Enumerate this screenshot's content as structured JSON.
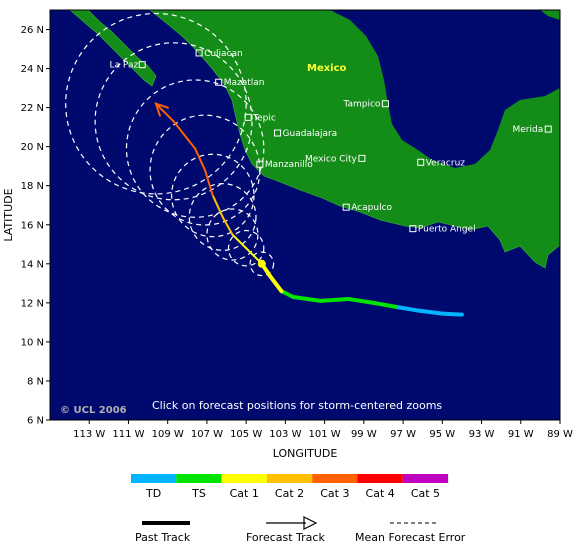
{
  "map": {
    "xlabel": "LONGITUDE",
    "ylabel": "LATITUDE",
    "lat_ticks": [
      "26 N",
      "24 N",
      "22 N",
      "20 N",
      "18 N",
      "16 N",
      "14 N",
      "12 N",
      "10 N",
      "8 N",
      "6 N"
    ],
    "lon_ticks": [
      "113 W",
      "111 W",
      "109 W",
      "107 W",
      "105 W",
      "103 W",
      "101 W",
      "99 W",
      "97 W",
      "95 W",
      "93 W",
      "91 W",
      "89 W"
    ],
    "country": "Mexico",
    "cities": [
      {
        "name": "Culiacan",
        "lon": -107.4,
        "lat": 24.8
      },
      {
        "name": "La Paz",
        "lon": -110.3,
        "lat": 24.2
      },
      {
        "name": "Mazatlan",
        "lon": -106.4,
        "lat": 23.3
      },
      {
        "name": "Tampico",
        "lon": -97.9,
        "lat": 22.2
      },
      {
        "name": "Tepic",
        "lon": -104.9,
        "lat": 21.5
      },
      {
        "name": "Merida",
        "lon": -89.6,
        "lat": 20.9
      },
      {
        "name": "Guadalajara",
        "lon": -103.4,
        "lat": 20.7
      },
      {
        "name": "Mexico City",
        "lon": -99.1,
        "lat": 19.4
      },
      {
        "name": "Veracruz",
        "lon": -96.1,
        "lat": 19.2
      },
      {
        "name": "Manzanillo",
        "lon": -104.3,
        "lat": 19.1
      },
      {
        "name": "Acapulco",
        "lon": -99.9,
        "lat": 16.9
      },
      {
        "name": "Puerto Angel",
        "lon": -96.5,
        "lat": 15.8
      }
    ],
    "credit": "© UCL 2006",
    "note": "Click on forecast positions for storm-centered zooms"
  },
  "colors": {
    "ocean": "#000a6e",
    "land": "#148c18",
    "td": "#00b4ff",
    "ts": "#00e400",
    "cat1": "#ffff00",
    "cat2": "#ffc000",
    "cat3": "#ff6000",
    "cat4": "#ff0000",
    "cat5": "#c000c0"
  },
  "track": {
    "past": [
      {
        "lon": -94.0,
        "lat": 11.4,
        "cat": "td"
      },
      {
        "lon": -95.0,
        "lat": 11.45,
        "cat": "td"
      },
      {
        "lon": -96.2,
        "lat": 11.6,
        "cat": "td"
      },
      {
        "lon": -97.4,
        "lat": 11.8,
        "cat": "td"
      },
      {
        "lon": -98.5,
        "lat": 12.0,
        "cat": "ts"
      },
      {
        "lon": -99.8,
        "lat": 12.2,
        "cat": "ts"
      },
      {
        "lon": -101.2,
        "lat": 12.1,
        "cat": "ts"
      },
      {
        "lon": -102.6,
        "lat": 12.3,
        "cat": "ts"
      },
      {
        "lon": -103.2,
        "lat": 12.6,
        "cat": "ts"
      },
      {
        "lon": -103.8,
        "lat": 13.4,
        "cat": "cat1"
      },
      {
        "lon": -104.2,
        "lat": 14.0,
        "cat": "cat1"
      }
    ],
    "current": {
      "lon": -104.2,
      "lat": 14.0
    },
    "forecast": [
      {
        "lon": -104.2,
        "lat": 14.0,
        "cat": "cat1",
        "err": 0.6
      },
      {
        "lon": -105.0,
        "lat": 14.8,
        "cat": "cat1",
        "err": 0.9
      },
      {
        "lon": -105.7,
        "lat": 15.5,
        "cat": "cat1",
        "err": 1.3
      },
      {
        "lon": -106.2,
        "lat": 16.4,
        "cat": "cat2",
        "err": 1.7
      },
      {
        "lon": -106.7,
        "lat": 17.5,
        "cat": "cat2",
        "err": 2.1
      },
      {
        "lon": -107.1,
        "lat": 18.8,
        "cat": "cat3",
        "err": 2.8
      },
      {
        "lon": -107.6,
        "lat": 19.9,
        "cat": "cat3",
        "err": 3.5
      },
      {
        "lon": -108.7,
        "lat": 21.3,
        "cat": "cat3",
        "err": 4.0
      },
      {
        "lon": -109.6,
        "lat": 22.2,
        "cat": "cat3",
        "err": 4.6
      }
    ]
  },
  "legend": {
    "categories": [
      "TD",
      "TS",
      "Cat 1",
      "Cat 2",
      "Cat 3",
      "Cat 4",
      "Cat 5"
    ],
    "past_track": "Past Track",
    "forecast_track": "Forecast Track",
    "error": "Mean Forecast Error"
  }
}
